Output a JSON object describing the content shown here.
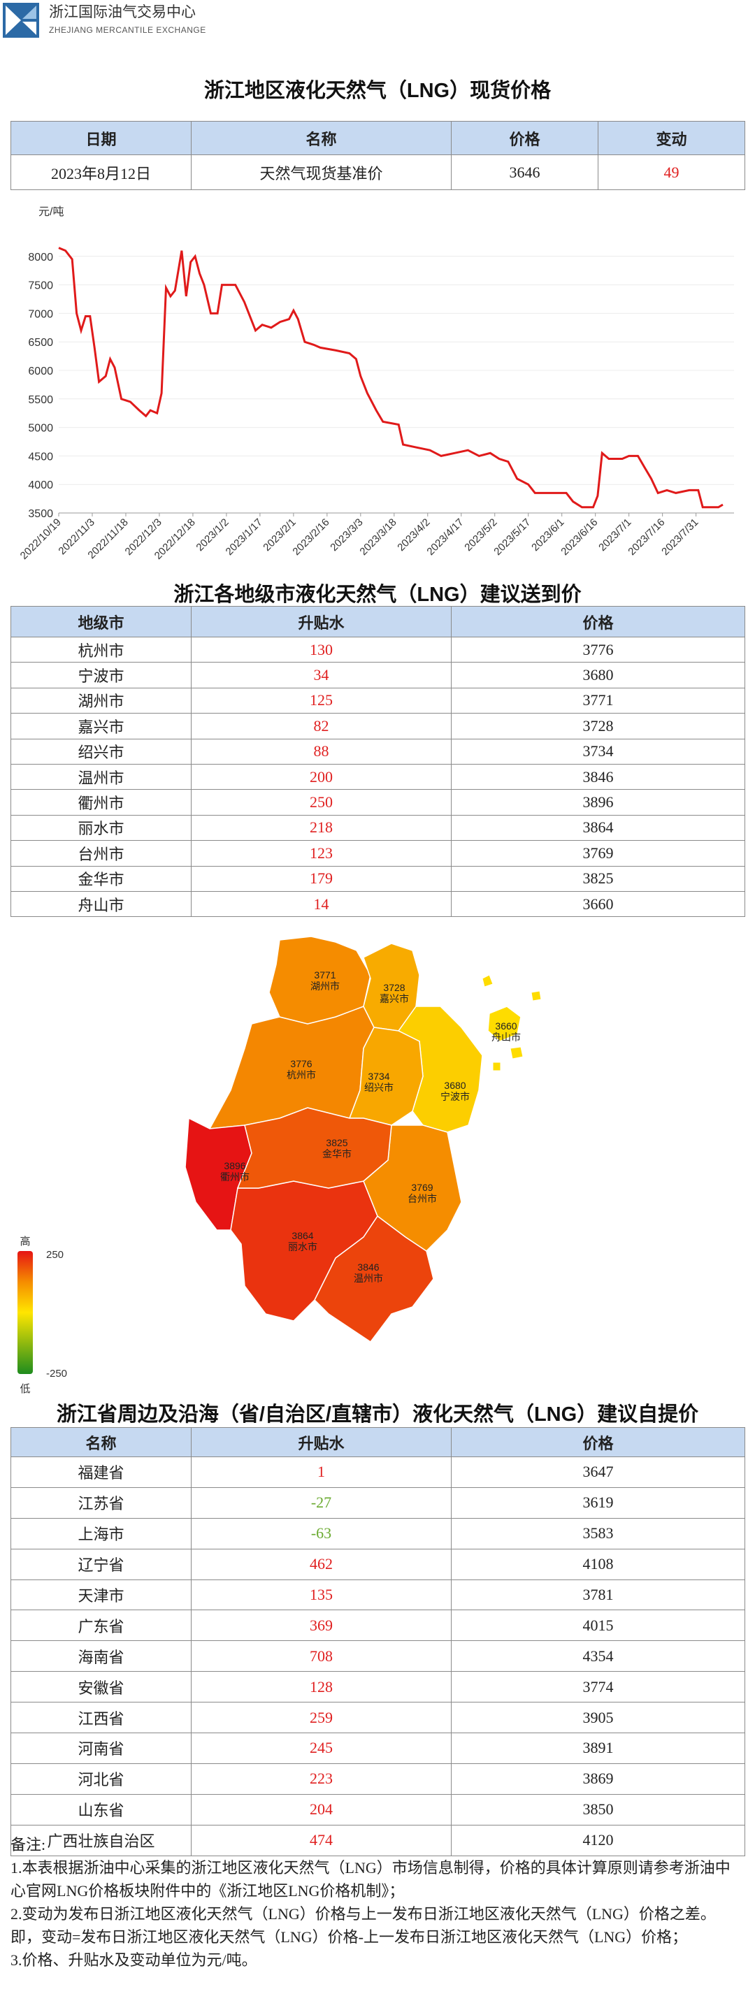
{
  "header": {
    "org_cn": "浙江国际油气交易中心",
    "org_en": "ZHEJIANG MERCANTILE EXCHANGE"
  },
  "spot": {
    "title": "浙江地区液化天然气（LNG）现货价格",
    "columns": [
      "日期",
      "名称",
      "价格",
      "变动"
    ],
    "rows": [
      [
        "2023年8月12日",
        "天然气现货基准价",
        3646,
        49
      ]
    ]
  },
  "chart_data": {
    "type": "line",
    "y_unit": "元/吨",
    "x": [
      "2022/10/19",
      "2022/10/22",
      "2022/10/25",
      "2022/10/27",
      "2022/10/29",
      "2022/10/31",
      "2022/11/2",
      "2022/11/4",
      "2022/11/6",
      "2022/11/9",
      "2022/11/11",
      "2022/11/13",
      "2022/11/16",
      "2022/11/20",
      "2022/11/24",
      "2022/11/27",
      "2022/11/29",
      "2022/12/2",
      "2022/12/4",
      "2022/12/6",
      "2022/12/8",
      "2022/12/10",
      "2022/12/13",
      "2022/12/15",
      "2022/12/17",
      "2022/12/19",
      "2022/12/21",
      "2022/12/23",
      "2022/12/26",
      "2022/12/29",
      "2022/12/31",
      "2023/1/2",
      "2023/1/6",
      "2023/1/10",
      "2023/1/13",
      "2023/1/15",
      "2023/1/18",
      "2023/1/22",
      "2023/1/26",
      "2023/1/30",
      "2023/2/1",
      "2023/2/3",
      "2023/2/6",
      "2023/2/10",
      "2023/2/13",
      "2023/2/20",
      "2023/2/26",
      "2023/3/1",
      "2023/3/3",
      "2023/3/6",
      "2023/3/10",
      "2023/3/13",
      "2023/3/20",
      "2023/3/22",
      "2023/3/28",
      "2023/4/3",
      "2023/4/8",
      "2023/4/14",
      "2023/4/20",
      "2023/4/25",
      "2023/4/30",
      "2023/5/4",
      "2023/5/8",
      "2023/5/12",
      "2023/5/17",
      "2023/5/20",
      "2023/5/28",
      "2023/6/3",
      "2023/6/6",
      "2023/6/10",
      "2023/6/15",
      "2023/6/17",
      "2023/6/19",
      "2023/6/22",
      "2023/6/28",
      "2023/7/1",
      "2023/7/5",
      "2023/7/8",
      "2023/7/11",
      "2023/7/14",
      "2023/7/18",
      "2023/7/22",
      "2023/7/28",
      "2023/8/1",
      "2023/8/3",
      "2023/8/10",
      "2023/8/12"
    ],
    "series": [
      {
        "color": "#e01a1a",
        "values": [
          8150,
          8100,
          7950,
          7000,
          6700,
          6950,
          6950,
          6400,
          5800,
          5900,
          6200,
          6050,
          5500,
          5450,
          5300,
          5200,
          5300,
          5250,
          5600,
          7450,
          7300,
          7400,
          8100,
          7300,
          7900,
          8000,
          7700,
          7500,
          7000,
          7000,
          7500,
          7500,
          7500,
          7200,
          6900,
          6700,
          6800,
          6750,
          6850,
          6900,
          7050,
          6900,
          6500,
          6450,
          6400,
          6350,
          6300,
          6200,
          5900,
          5600,
          5300,
          5100,
          5050,
          4700,
          4650,
          4600,
          4500,
          4550,
          4600,
          4500,
          4550,
          4450,
          4400,
          4100,
          4000,
          3850,
          3850,
          3850,
          3700,
          3600,
          3600,
          3800,
          4550,
          4450,
          4450,
          4500,
          4500,
          4300,
          4100,
          3850,
          3900,
          3850,
          3900,
          3900,
          3600,
          3600,
          3646
        ]
      }
    ],
    "xlim": [
      "2022/10/19",
      "2023/8/12"
    ],
    "xticks": [
      "2022/10/19",
      "2022/11/3",
      "2022/11/18",
      "2022/12/3",
      "2022/12/18",
      "2023/1/2",
      "2023/1/17",
      "2023/2/1",
      "2023/2/16",
      "2023/3/3",
      "2023/3/18",
      "2023/4/2",
      "2023/4/17",
      "2023/5/2",
      "2023/5/17",
      "2023/6/1",
      "2023/6/16",
      "2023/7/1",
      "2023/7/16",
      "2023/7/31"
    ],
    "ylim": [
      3500,
      8500
    ],
    "yticks": [
      3500,
      4000,
      4500,
      5000,
      5500,
      6000,
      6500,
      7000,
      7500,
      8000
    ],
    "grid": true
  },
  "cities": {
    "title": "浙江各地级市液化天然气（LNG）建议送到价",
    "columns": [
      "地级市",
      "升贴水",
      "价格"
    ],
    "rows": [
      [
        "杭州市",
        130,
        3776
      ],
      [
        "宁波市",
        34,
        3680
      ],
      [
        "湖州市",
        125,
        3771
      ],
      [
        "嘉兴市",
        82,
        3728
      ],
      [
        "绍兴市",
        88,
        3734
      ],
      [
        "温州市",
        200,
        3846
      ],
      [
        "衢州市",
        250,
        3896
      ],
      [
        "丽水市",
        218,
        3864
      ],
      [
        "台州市",
        123,
        3769
      ],
      [
        "金华市",
        179,
        3825
      ],
      [
        "舟山市",
        14,
        3660
      ]
    ]
  },
  "map": {
    "legend": {
      "high": "高",
      "max": 250,
      "min": -250,
      "low": "低"
    }
  },
  "provinces": {
    "title": "浙江省周边及沿海（省/自治区/直辖市）液化天然气（LNG）建议自提价",
    "columns": [
      "名称",
      "升贴水",
      "价格"
    ],
    "rows": [
      [
        "福建省",
        1,
        3647
      ],
      [
        "江苏省",
        -27,
        3619
      ],
      [
        "上海市",
        -63,
        3583
      ],
      [
        "辽宁省",
        462,
        4108
      ],
      [
        "天津市",
        135,
        3781
      ],
      [
        "广东省",
        369,
        4015
      ],
      [
        "海南省",
        708,
        4354
      ],
      [
        "安徽省",
        128,
        3774
      ],
      [
        "江西省",
        259,
        3905
      ],
      [
        "河南省",
        245,
        3891
      ],
      [
        "河北省",
        223,
        3869
      ],
      [
        "山东省",
        204,
        3850
      ],
      [
        "广西壮族自治区",
        474,
        4120
      ]
    ]
  },
  "notes": {
    "heading": "备注:",
    "items": [
      "1.本表根据浙油中心采集的浙江地区液化天然气（LNG）市场信息制得，价格的具体计算原则请参考浙油中心官网LNG价格板块附件中的《浙江地区LNG价格机制》；",
      "2.变动为发布日浙江地区液化天然气（LNG）价格与上一发布日浙江地区液化天然气（LNG）价格之差。即，变动=发布日浙江地区液化天然气（LNG）价格-上一发布日浙江地区液化天然气（LNG）价格；",
      "3.价格、升贴水及变动单位为元/吨。"
    ]
  }
}
